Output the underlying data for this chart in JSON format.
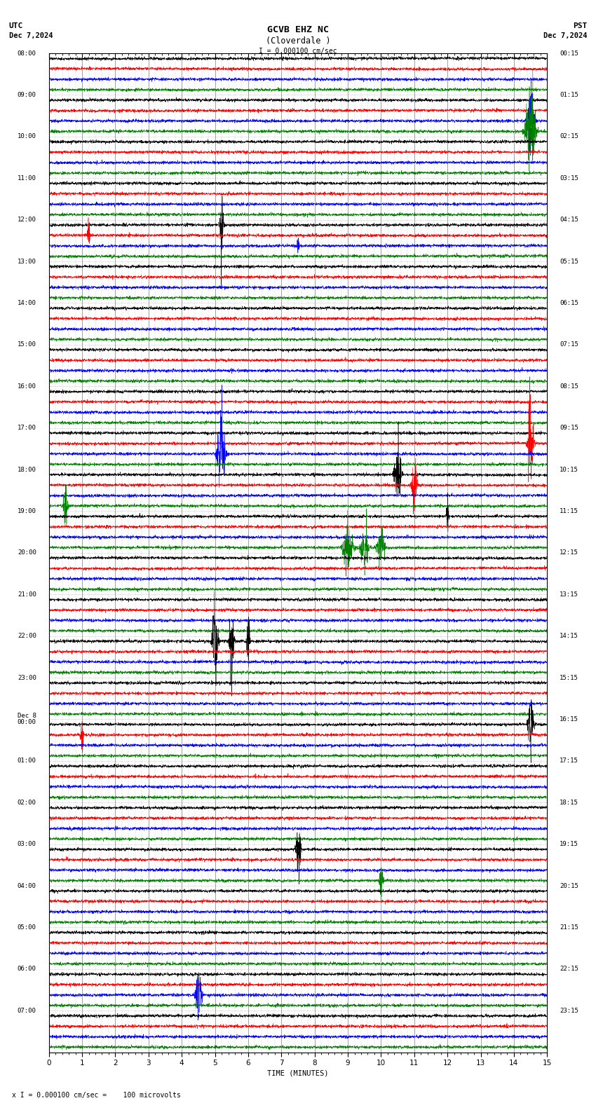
{
  "title_line1": "GCVB EHZ NC",
  "title_line2": "(Cloverdale )",
  "scale_text": "I = 0.000100 cm/sec",
  "utc_label": "UTC",
  "utc_date": "Dec 7,2024",
  "pst_label": "PST",
  "pst_date": "Dec 7,2024",
  "xlabel": "TIME (MINUTES)",
  "footer_text": "x I = 0.000100 cm/sec =    100 microvolts",
  "xmin": 0,
  "xmax": 15,
  "trace_colors": [
    "black",
    "red",
    "blue",
    "green"
  ],
  "background_color": "#ffffff",
  "n_rows": 96,
  "utc_hour_labels": [
    "08:00",
    "09:00",
    "10:00",
    "11:00",
    "12:00",
    "13:00",
    "14:00",
    "15:00",
    "16:00",
    "17:00",
    "18:00",
    "19:00",
    "20:00",
    "21:00",
    "22:00",
    "23:00",
    "Dec 8\n00:00",
    "01:00",
    "02:00",
    "03:00",
    "04:00",
    "05:00",
    "06:00",
    "07:00"
  ],
  "pst_hour_labels": [
    "00:15",
    "01:15",
    "02:15",
    "03:15",
    "04:15",
    "05:15",
    "06:15",
    "07:15",
    "08:15",
    "09:15",
    "10:15",
    "11:15",
    "12:15",
    "13:15",
    "14:15",
    "15:15",
    "16:15",
    "17:15",
    "18:15",
    "19:15",
    "20:15",
    "21:15",
    "22:15",
    "23:15"
  ]
}
